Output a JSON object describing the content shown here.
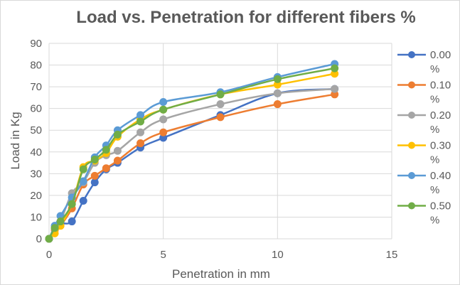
{
  "chart_data": {
    "type": "line",
    "title": "Load vs. Penetration for different fibers %",
    "xlabel": "Penetration in mm",
    "ylabel": "Load in Kg",
    "xlim": [
      0,
      15
    ],
    "ylim": [
      0,
      90
    ],
    "xticks": [
      0,
      5,
      10,
      15
    ],
    "yticks": [
      0,
      10,
      20,
      30,
      40,
      50,
      60,
      70,
      80,
      90
    ],
    "grid": true,
    "smooth": true,
    "markers": "circle",
    "legend_position": "right",
    "series": [
      {
        "name": "0.00 %",
        "color": "#4472C4",
        "x": [
          0,
          0.25,
          0.5,
          1,
          1.5,
          2,
          2.5,
          3,
          4,
          5,
          7.5,
          10,
          12.5
        ],
        "y": [
          0,
          5,
          7,
          8,
          17.5,
          26,
          32,
          35,
          42,
          46.5,
          57,
          67,
          69
        ]
      },
      {
        "name": "0.10 %",
        "color": "#ED7D31",
        "x": [
          0,
          0.25,
          0.5,
          1,
          1.5,
          2,
          2.5,
          3,
          4,
          5,
          7.5,
          10,
          12.5
        ],
        "y": [
          0,
          4,
          6,
          14,
          25,
          29,
          32.5,
          36,
          44,
          49,
          56,
          62,
          66.5
        ]
      },
      {
        "name": "0.20 %",
        "color": "#A5A5A5",
        "x": [
          0,
          0.25,
          0.5,
          1,
          1.5,
          2,
          2.5,
          3,
          4,
          5,
          7.5,
          10,
          12.5
        ],
        "y": [
          0,
          5,
          8,
          21,
          26,
          35,
          38.5,
          40.5,
          49,
          55,
          62,
          67,
          69
        ]
      },
      {
        "name": "0.30 %",
        "color": "#FFC000",
        "x": [
          0,
          0.25,
          0.5,
          1,
          1.5,
          2,
          2.5,
          3,
          4,
          5,
          7.5,
          10,
          12.5
        ],
        "y": [
          0,
          2.5,
          6,
          16,
          33,
          36,
          39.5,
          47,
          55,
          59.5,
          66.5,
          71,
          76
        ]
      },
      {
        "name": "0.40 %",
        "color": "#5B9BD5",
        "x": [
          0,
          0.25,
          0.5,
          1,
          1.5,
          2,
          2.5,
          3,
          4,
          5,
          7.5,
          10,
          12.5
        ],
        "y": [
          0,
          6,
          10.5,
          19,
          26.5,
          37.5,
          43,
          50,
          57,
          63,
          67.5,
          74.5,
          80.5
        ]
      },
      {
        "name": "0.50 %",
        "color": "#70AD47",
        "x": [
          0,
          0.25,
          0.5,
          1,
          1.5,
          2,
          2.5,
          3,
          4,
          5,
          7.5,
          10,
          12.5
        ],
        "y": [
          0,
          5,
          8,
          16,
          32,
          36.5,
          41,
          48,
          54,
          59.5,
          66.5,
          73.5,
          78.5
        ]
      }
    ]
  }
}
